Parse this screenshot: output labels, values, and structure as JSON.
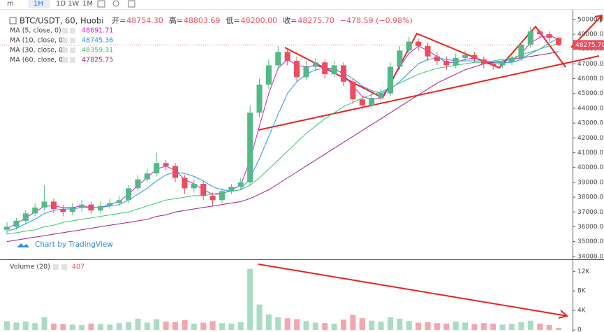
{
  "toolbar": {
    "items": [
      "m",
      "1H",
      "1D",
      "1W",
      "1M"
    ]
  },
  "chart_data": {
    "type": "candlestick",
    "title": "BTC/USDT, 60, Huobi",
    "ohlc_legend": [
      {
        "label": "开=",
        "value": "48754.30"
      },
      {
        "label": "高=",
        "value": "48803.69"
      },
      {
        "label": "低=",
        "value": "48200.00"
      },
      {
        "label": "收=",
        "value": "48275.70"
      }
    ],
    "change": "−478.59 (−0.98%)",
    "watermark": "Chart by TradingView",
    "price_tag": "48275.70",
    "up_color": "#53b987",
    "down_color": "#eb4d5c",
    "ylim": [
      33850,
      50650
    ],
    "yticks": [
      {
        "value": 34000,
        "label": "34000.00"
      },
      {
        "value": 35000,
        "label": "35000.00"
      },
      {
        "value": 36000,
        "label": "36000.00"
      },
      {
        "value": 37000,
        "label": "37000.00"
      },
      {
        "value": 38000,
        "label": "38000.00"
      },
      {
        "value": 39000,
        "label": "39000.00"
      },
      {
        "value": 40000,
        "label": "40000.00"
      },
      {
        "value": 41000,
        "label": "41000.00"
      },
      {
        "value": 42000,
        "label": "42000.00"
      },
      {
        "value": 43000,
        "label": "43000.00"
      },
      {
        "value": 44000,
        "label": "44000.00"
      },
      {
        "value": 45000,
        "label": "45000.00"
      },
      {
        "value": 46000,
        "label": "46000.00"
      },
      {
        "value": 47000,
        "label": "47000.00"
      },
      {
        "value": 48000,
        "label": "48000.00"
      },
      {
        "value": 49000,
        "label": "49000.00"
      },
      {
        "value": 50000,
        "label": "50000.00"
      }
    ],
    "open": [
      35800,
      36000,
      36400,
      36900,
      37300,
      37700,
      37200,
      37000,
      37300,
      37500,
      37100,
      37400,
      37600,
      37800,
      38600,
      39200,
      39600,
      40300,
      40100,
      39300,
      38600,
      38900,
      38100,
      37800,
      38400,
      38700,
      39000,
      43700,
      45600,
      46900,
      47800,
      47200,
      46100,
      46800,
      47100,
      46300,
      46900,
      45800,
      44600,
      44200,
      44700,
      45000,
      46800,
      47900,
      48500,
      48200,
      47500,
      47200,
      46900,
      47400,
      47600,
      47300,
      47000,
      46900,
      47100,
      47400,
      48300,
      49200,
      49000,
      48754.3
    ],
    "high": [
      36300,
      36600,
      37100,
      37600,
      38800,
      37900,
      37500,
      37600,
      37800,
      37700,
      37700,
      37900,
      38100,
      38800,
      39500,
      39900,
      41000,
      40500,
      40300,
      39500,
      39200,
      39100,
      38300,
      38600,
      38900,
      39300,
      44200,
      46000,
      47300,
      48200,
      48000,
      47500,
      47200,
      47400,
      47300,
      47200,
      47100,
      46000,
      44800,
      45000,
      45300,
      47100,
      48200,
      48800,
      48700,
      48400,
      47800,
      47500,
      47700,
      47900,
      47800,
      47500,
      47200,
      47300,
      47600,
      48500,
      49500,
      49400,
      49200,
      48803.69
    ],
    "low": [
      35500,
      35800,
      36200,
      36700,
      37100,
      36900,
      36700,
      36800,
      37000,
      36900,
      36900,
      37200,
      37400,
      37600,
      38400,
      39000,
      39400,
      39800,
      39000,
      38200,
      38300,
      37800,
      37400,
      37600,
      38200,
      38500,
      38800,
      43400,
      45300,
      46600,
      46900,
      45800,
      45900,
      46500,
      46000,
      46100,
      45500,
      44300,
      43900,
      44000,
      44400,
      44800,
      46600,
      47600,
      47900,
      47200,
      46900,
      46600,
      46700,
      47200,
      47100,
      46700,
      46600,
      46700,
      46900,
      47200,
      48100,
      48700,
      48500,
      48200
    ],
    "close": [
      36000,
      36400,
      36900,
      37300,
      37700,
      37200,
      37000,
      37300,
      37500,
      37100,
      37400,
      37600,
      37800,
      38600,
      39200,
      39600,
      40300,
      40100,
      39300,
      38600,
      38900,
      38100,
      37800,
      38400,
      38700,
      39000,
      43700,
      45600,
      46900,
      47800,
      47200,
      46100,
      46800,
      47100,
      46300,
      46900,
      45800,
      44600,
      44200,
      44700,
      45000,
      46800,
      47900,
      48500,
      48200,
      47500,
      47200,
      46900,
      47400,
      47600,
      47300,
      47000,
      46900,
      47100,
      47400,
      48300,
      49200,
      49000,
      48754.3,
      48275.7
    ],
    "ma": [
      {
        "name": "MA (5, close, 0)",
        "last_label": "48691.71",
        "color": "#d21bc9",
        "values": [
          35900,
          36200,
          36600,
          37000,
          37400,
          37400,
          37300,
          37300,
          37400,
          37300,
          37300,
          37500,
          37700,
          38200,
          38800,
          39300,
          39900,
          40100,
          39800,
          39200,
          38900,
          38500,
          38200,
          38200,
          38500,
          38800,
          40500,
          42800,
          45000,
          46700,
          47300,
          46900,
          46800,
          46900,
          46700,
          46700,
          46300,
          45500,
          44800,
          44600,
          44700,
          45600,
          46800,
          47700,
          48200,
          47900,
          47500,
          47100,
          47100,
          47300,
          47400,
          47200,
          47000,
          47000,
          47200,
          47700,
          48400,
          48800,
          48900,
          48691.71
        ]
      },
      {
        "name": "MA (10, close, 0)",
        "last_label": "48745.36",
        "color": "#2196f3",
        "values": [
          35700,
          35900,
          36200,
          36500,
          36900,
          37100,
          37200,
          37200,
          37300,
          37300,
          37300,
          37400,
          37500,
          37800,
          38200,
          38600,
          39100,
          39500,
          39700,
          39600,
          39400,
          39100,
          38700,
          38500,
          38400,
          38500,
          39300,
          40600,
          42100,
          43600,
          45000,
          45800,
          46300,
          46600,
          46700,
          46600,
          46400,
          46000,
          45500,
          45200,
          45000,
          45300,
          45800,
          46400,
          47000,
          47300,
          47400,
          47300,
          47200,
          47200,
          47200,
          47200,
          47100,
          47100,
          47100,
          47300,
          47700,
          48000,
          48400,
          48745.36
        ]
      },
      {
        "name": "MA (30, close, 0)",
        "last_label": "48359.31",
        "color": "#36c96b",
        "values": [
          35500,
          35600,
          35700,
          35800,
          36000,
          36100,
          36300,
          36400,
          36500,
          36600,
          36700,
          36800,
          36900,
          37000,
          37200,
          37400,
          37600,
          37800,
          37900,
          38000,
          38100,
          38100,
          38200,
          38300,
          38400,
          38500,
          38800,
          39300,
          39900,
          40500,
          41100,
          41700,
          42300,
          42800,
          43300,
          43700,
          44100,
          44400,
          44700,
          44900,
          45100,
          45400,
          45700,
          46000,
          46300,
          46500,
          46700,
          46800,
          46900,
          47000,
          47100,
          47100,
          47200,
          47300,
          47400,
          47600,
          47800,
          48000,
          48200,
          48359.31
        ]
      },
      {
        "name": "MA (60, close, 0)",
        "last_label": "47825.75",
        "color": "#a01f8c",
        "values": [
          35000,
          35100,
          35200,
          35300,
          35400,
          35500,
          35600,
          35700,
          35800,
          35900,
          36000,
          36100,
          36200,
          36300,
          36400,
          36500,
          36700,
          36800,
          37000,
          37100,
          37200,
          37300,
          37400,
          37500,
          37600,
          37700,
          37900,
          38200,
          38500,
          38900,
          39300,
          39700,
          40100,
          40500,
          40900,
          41300,
          41700,
          42100,
          42500,
          42900,
          43300,
          43700,
          44100,
          44500,
          44900,
          45300,
          45700,
          46000,
          46300,
          46600,
          46800,
          47000,
          47100,
          47200,
          47300,
          47400,
          47500,
          47600,
          47700,
          47825.75
        ]
      }
    ],
    "volume": {
      "name": "Volume (20)",
      "last_label": "407",
      "ylim": [
        0,
        13900
      ],
      "yticks": [
        0,
        {
          "value": 4000,
          "label": "4K"
        },
        {
          "value": 8000,
          "label": "8K"
        },
        {
          "value": 12000,
          "label": "12K"
        }
      ],
      "values": [
        1800,
        1500,
        1700,
        1400,
        2600,
        1300,
        1200,
        1100,
        1000,
        1300,
        1200,
        1100,
        1400,
        1600,
        2300,
        1500,
        2200,
        1700,
        1600,
        2000,
        1300,
        1500,
        1800,
        1400,
        1300,
        1600,
        12500,
        5200,
        3200,
        2600,
        2400,
        2200,
        1800,
        1500,
        1400,
        1300,
        2100,
        3100,
        2400,
        1900,
        1700,
        2600,
        2300,
        1800,
        1500,
        1600,
        1400,
        1300,
        1700,
        1500,
        1200,
        1400,
        1300,
        1100,
        1200,
        1600,
        1900,
        1300,
        1000,
        407
      ]
    }
  }
}
